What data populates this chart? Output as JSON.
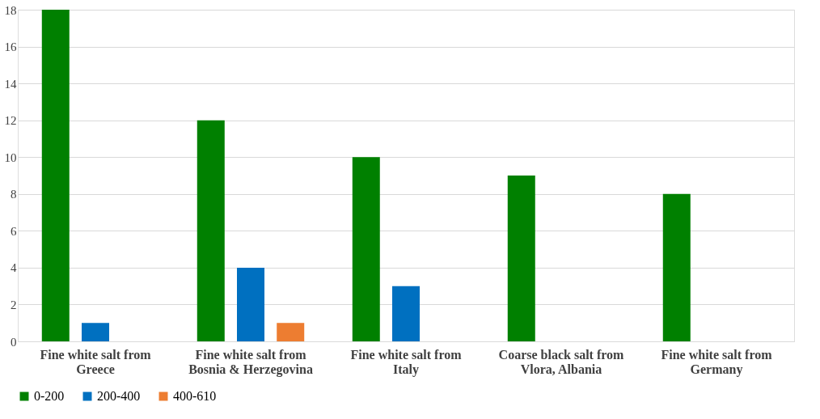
{
  "chart_data": {
    "type": "bar",
    "categories": [
      "Fine white salt from Greece",
      "Fine white salt from Bosnia & Herzegovina",
      "Fine white salt from Italy",
      "Coarse black salt from Vlora, Albania",
      "Fine white salt from Germany"
    ],
    "series": [
      {
        "name": "0-200",
        "color": "#008000",
        "values": [
          18,
          12,
          10,
          9,
          8
        ]
      },
      {
        "name": "200-400",
        "color": "#0070c0",
        "values": [
          1,
          4,
          3,
          0,
          0
        ]
      },
      {
        "name": "400-610",
        "color": "#ed7d31",
        "values": [
          0,
          1,
          0,
          0,
          0
        ]
      }
    ],
    "ylim": [
      0,
      18
    ],
    "yticks": [
      0,
      2,
      4,
      6,
      8,
      10,
      12,
      14,
      16,
      18
    ],
    "grid": "y",
    "legend": "bottom"
  }
}
